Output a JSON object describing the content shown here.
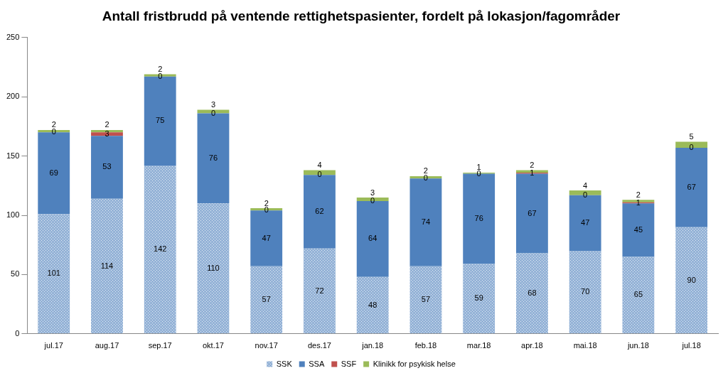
{
  "chart_data": {
    "type": "bar",
    "title": "Antall fristbrudd på ventende rettighetspasienter, fordelt på lokasjon/fagområder",
    "categories": [
      "jul.17",
      "aug.17",
      "sep.17",
      "okt.17",
      "nov.17",
      "des.17",
      "jan.18",
      "feb.18",
      "mar.18",
      "apr.18",
      "mai.18",
      "jun.18",
      "jul.18"
    ],
    "series": [
      {
        "name": "SSK",
        "color": "#95b3d7",
        "values": [
          101,
          114,
          142,
          110,
          57,
          72,
          48,
          57,
          59,
          68,
          70,
          65,
          90
        ]
      },
      {
        "name": "SSA",
        "color": "#4f81bd",
        "values": [
          69,
          53,
          75,
          76,
          47,
          62,
          64,
          74,
          76,
          67,
          47,
          45,
          67
        ]
      },
      {
        "name": "SSF",
        "color": "#c0504d",
        "values": [
          0,
          3,
          0,
          0,
          0,
          0,
          0,
          0,
          0,
          1,
          0,
          1,
          0
        ]
      },
      {
        "name": "Klinikk for psykisk helse",
        "color": "#9bbb59",
        "values": [
          2,
          2,
          2,
          3,
          2,
          4,
          3,
          2,
          1,
          2,
          4,
          2,
          5
        ]
      }
    ],
    "ylim": [
      0,
      250
    ],
    "yticks": [
      0,
      50,
      100,
      150,
      200,
      250
    ],
    "stacked": true,
    "data_labels": true,
    "grid": false,
    "legend": "bottom"
  }
}
